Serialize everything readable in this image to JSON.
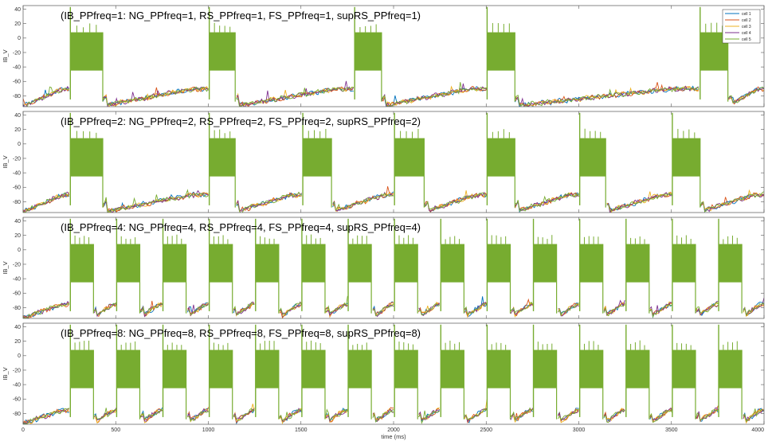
{
  "chart_data": {
    "type": "line",
    "xlabel": "time (ms)",
    "xlim": [
      0,
      4000
    ],
    "x_ticks": [
      0,
      500,
      1000,
      1500,
      2000,
      2500,
      3000,
      3500,
      4000
    ],
    "legend_location": "top-right",
    "colors": {
      "series": [
        "#0072BD",
        "#D95319",
        "#EDB120",
        "#7E2F8E",
        "#77AC30"
      ],
      "axes": "#555555",
      "spike_fill": "#77AC30"
    },
    "series": [
      {
        "name": "cell 1"
      },
      {
        "name": "cell 2"
      },
      {
        "name": "cell 3"
      },
      {
        "name": "cell 4"
      },
      {
        "name": "cell 5"
      }
    ],
    "panels": [
      {
        "title": "(IB_PPfreq=1: NG_PPfreq=1, RS_PPfreq=1, FS_PPfreq=1, supRS_PPfreq=1)",
        "ylabel": "IB_V",
        "ylim": [
          -95,
          45
        ],
        "y_ticks": [
          -80,
          -60,
          -40,
          -20,
          0,
          20,
          40
        ],
        "show_legend": true,
        "bursts_ms": [
          [
            255,
            430
          ],
          [
            1005,
            1145
          ],
          [
            1790,
            1935
          ],
          [
            2505,
            2655
          ],
          [
            3655,
            3805
          ]
        ],
        "burst_range_mv": [
          -45,
          8
        ],
        "baseline_mv": {
          "start": -90,
          "end": -70
        }
      },
      {
        "title": "(IB_PPfreq=2: NG_PPfreq=2, RS_PPfreq=2, FS_PPfreq=2, supRS_PPfreq=2)",
        "ylabel": "IB_V",
        "ylim": [
          -95,
          45
        ],
        "y_ticks": [
          -80,
          -60,
          -40,
          -20,
          0,
          20,
          40
        ],
        "show_legend": false,
        "bursts_ms": [
          [
            255,
            430
          ],
          [
            1005,
            1145
          ],
          [
            1510,
            1665
          ],
          [
            2005,
            2165
          ],
          [
            2505,
            2655
          ],
          [
            3005,
            3145
          ],
          [
            3505,
            3655
          ]
        ],
        "burst_range_mv": [
          -45,
          8
        ],
        "baseline_mv": {
          "start": -90,
          "end": -70
        }
      },
      {
        "title": "(IB_PPfreq=4: NG_PPfreq=4, RS_PPfreq=4, FS_PPfreq=4, supRS_PPfreq=4)",
        "ylabel": "IB_V",
        "ylim": [
          -95,
          45
        ],
        "y_ticks": [
          -80,
          -60,
          -40,
          -20,
          0,
          20,
          40
        ],
        "show_legend": false,
        "bursts_ms": [
          [
            255,
            380
          ],
          [
            505,
            630
          ],
          [
            755,
            880
          ],
          [
            1005,
            1130
          ],
          [
            1255,
            1380
          ],
          [
            1505,
            1630
          ],
          [
            1755,
            1880
          ],
          [
            2005,
            2130
          ],
          [
            2255,
            2380
          ],
          [
            2505,
            2630
          ],
          [
            2755,
            2880
          ],
          [
            3005,
            3130
          ],
          [
            3255,
            3380
          ],
          [
            3505,
            3630
          ],
          [
            3755,
            3880
          ]
        ],
        "burst_range_mv": [
          -45,
          8
        ],
        "baseline_mv": {
          "start": -90,
          "end": -75
        }
      },
      {
        "title": "(IB_PPfreq=8: NG_PPfreq=8, RS_PPfreq=8, FS_PPfreq=8, supRS_PPfreq=8)",
        "ylabel": "IB_V",
        "ylim": [
          -95,
          45
        ],
        "y_ticks": [
          -80,
          -60,
          -40,
          -20,
          0,
          20,
          40
        ],
        "show_legend": false,
        "bursts_ms": [
          [
            255,
            380
          ],
          [
            505,
            630
          ],
          [
            755,
            880
          ],
          [
            1005,
            1130
          ],
          [
            1255,
            1380
          ],
          [
            1505,
            1630
          ],
          [
            1755,
            1880
          ],
          [
            2005,
            2130
          ],
          [
            2255,
            2380
          ],
          [
            2505,
            2630
          ],
          [
            2755,
            2880
          ],
          [
            3005,
            3130
          ],
          [
            3255,
            3380
          ],
          [
            3505,
            3630
          ],
          [
            3755,
            3880
          ]
        ],
        "burst_range_mv": [
          -45,
          8
        ],
        "baseline_mv": {
          "start": -90,
          "end": -75
        }
      }
    ]
  }
}
